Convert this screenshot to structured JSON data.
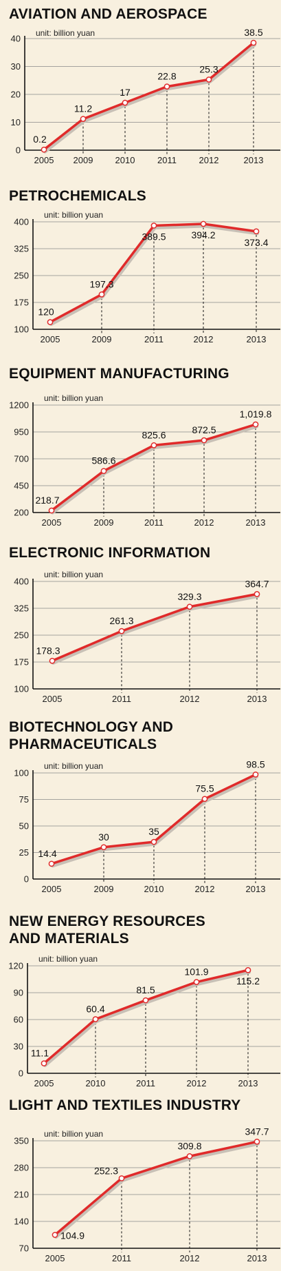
{
  "chart_data": [
    {
      "type": "line",
      "title": "AVIATION AND AEROSPACE",
      "unit_label": "unit: billion yuan",
      "categories": [
        "2005",
        "2009",
        "2010",
        "2011",
        "2012",
        "2013"
      ],
      "values": [
        0.2,
        11.2,
        17,
        22.8,
        25.3,
        38.5
      ],
      "value_labels": [
        "0.2",
        "11.2",
        "17",
        "22.8",
        "25.3",
        "38.5"
      ],
      "yticks": [
        0,
        10,
        20,
        30,
        40
      ],
      "ylim": [
        0,
        40
      ],
      "grid": true,
      "colors": {
        "line": "#e02a2a",
        "marker_fill": "#ffffff",
        "shadow": "#c8c0b6"
      }
    },
    {
      "type": "line",
      "title": "PETROCHEMICALS",
      "unit_label": "unit: billion yuan",
      "categories": [
        "2005",
        "2009",
        "2011",
        "2012",
        "2013"
      ],
      "values": [
        120,
        197.3,
        389.5,
        394.2,
        373.4
      ],
      "value_labels": [
        "120",
        "197.3",
        "389.5",
        "394.2",
        "373.4"
      ],
      "yticks": [
        100,
        175,
        250,
        325,
        400
      ],
      "ylim": [
        100,
        400
      ],
      "grid": true,
      "colors": {
        "line": "#e02a2a",
        "marker_fill": "#ffffff",
        "shadow": "#c8c0b6"
      }
    },
    {
      "type": "line",
      "title": "EQUIPMENT MANUFACTURING",
      "unit_label": "unit: billion yuan",
      "categories": [
        "2005",
        "2009",
        "2011",
        "2012",
        "2013"
      ],
      "values": [
        218.7,
        586.6,
        825.6,
        872.5,
        1019.8
      ],
      "value_labels": [
        "218.7",
        "586.6",
        "825.6",
        "872.5",
        "1,019.8"
      ],
      "yticks": [
        200,
        450,
        700,
        950,
        1200
      ],
      "ylim": [
        200,
        1200
      ],
      "grid": true,
      "colors": {
        "line": "#e02a2a",
        "marker_fill": "#ffffff",
        "shadow": "#c8c0b6"
      }
    },
    {
      "type": "line",
      "title": "ELECTRONIC INFORMATION",
      "unit_label": "unit: billion yuan",
      "categories": [
        "2005",
        "2011",
        "2012",
        "2013"
      ],
      "values": [
        178.3,
        261.3,
        329.3,
        364.7
      ],
      "value_labels": [
        "178.3",
        "261.3",
        "329.3",
        "364.7"
      ],
      "yticks": [
        100,
        175,
        250,
        325,
        400
      ],
      "ylim": [
        100,
        400
      ],
      "grid": true,
      "colors": {
        "line": "#e02a2a",
        "marker_fill": "#ffffff",
        "shadow": "#c8c0b6"
      }
    },
    {
      "type": "line",
      "title": "BIOTECHNOLOGY AND\nPHARMACEUTICALS",
      "unit_label": "unit: billion yuan",
      "categories": [
        "2005",
        "2009",
        "2010",
        "2012",
        "2013"
      ],
      "values": [
        14.4,
        30,
        35,
        75.5,
        98.5
      ],
      "value_labels": [
        "14.4",
        "30",
        "35",
        "75.5",
        "98.5"
      ],
      "yticks": [
        0,
        25,
        50,
        75,
        100
      ],
      "ylim": [
        0,
        100
      ],
      "grid": true,
      "colors": {
        "line": "#e02a2a",
        "marker_fill": "#ffffff",
        "shadow": "#c8c0b6"
      }
    },
    {
      "type": "line",
      "title": "NEW ENERGY RESOURCES\nAND MATERIALS",
      "unit_label": "unit: billion yuan",
      "categories": [
        "2005",
        "2010",
        "2011",
        "2012",
        "2013"
      ],
      "values": [
        11.1,
        60.4,
        81.5,
        101.9,
        115.2
      ],
      "value_labels": [
        "11.1",
        "60.4",
        "81.5",
        "101.9",
        "115.2"
      ],
      "yticks": [
        0,
        30,
        60,
        90,
        120
      ],
      "ylim": [
        0,
        120
      ],
      "grid": true,
      "colors": {
        "line": "#e02a2a",
        "marker_fill": "#ffffff",
        "shadow": "#c8c0b6"
      }
    },
    {
      "type": "line",
      "title": "LIGHT AND TEXTILES INDUSTRY",
      "unit_label": "unit: billion yuan",
      "categories": [
        "2005",
        "2011",
        "2012",
        "2013"
      ],
      "values": [
        104.9,
        252.3,
        309.8,
        347.7
      ],
      "value_labels": [
        "104.9",
        "252.3",
        "309.8",
        "347.7"
      ],
      "yticks": [
        70,
        140,
        210,
        280,
        350
      ],
      "ylim": [
        70,
        350
      ],
      "grid": true,
      "colors": {
        "line": "#e02a2a",
        "marker_fill": "#ffffff",
        "shadow": "#c8c0b6"
      }
    }
  ]
}
